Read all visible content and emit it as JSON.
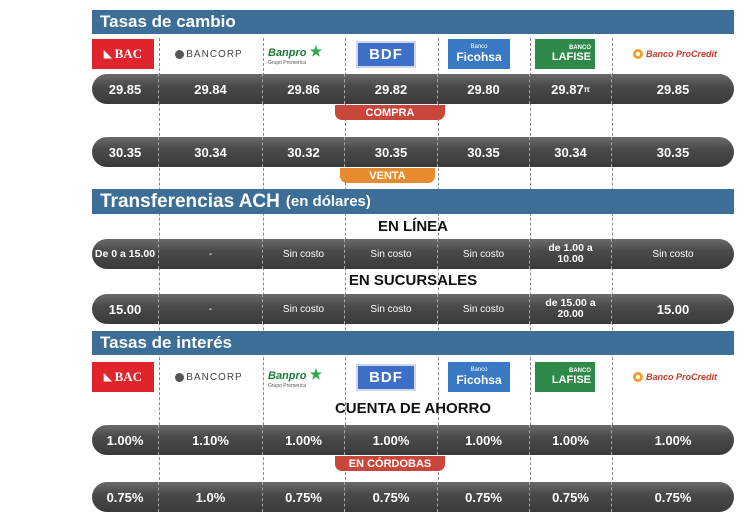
{
  "exchange": {
    "title": "Tasas de cambio",
    "banks": [
      "BAC",
      "BANCORP",
      "Banpro",
      "BDF",
      "Ficohsa",
      "LAFISE",
      "Banco ProCredit"
    ],
    "banpro_sub": "Grupo Promerica",
    "ficohsa_top": "Banco",
    "lafise_top": "BANCO",
    "compra": [
      "29.85",
      "29.84",
      "29.86",
      "29.82",
      "29.80",
      "29.87",
      "29.85"
    ],
    "compra_mark": "π",
    "compra_label": "COMPRA",
    "venta": [
      "30.35",
      "30.34",
      "30.32",
      "30.35",
      "30.35",
      "30.34",
      "30.35"
    ],
    "venta_label": "VENTA"
  },
  "ach": {
    "title": "Transferencias ACH",
    "title_suffix": "(en dólares)",
    "online_title": "EN LÍNEA",
    "online": [
      "De 0 a 15.00",
      "-",
      "Sin costo",
      "Sin costo",
      "Sin costo",
      "de 1.00 a 10.00",
      "Sin costo"
    ],
    "branch_title": "EN SUCURSALES",
    "branch": [
      "15.00",
      "-",
      "Sin costo",
      "Sin costo",
      "Sin costo",
      "de 15.00 a 20.00",
      "15.00"
    ]
  },
  "interest": {
    "title": "Tasas de interés",
    "savings_title": "CUENTA  DE AHORRO",
    "cordobas": [
      "1.00%",
      "1.10%",
      "1.00%",
      "1.00%",
      "1.00%",
      "1.00%",
      "1.00%"
    ],
    "cordobas_label": "EN CÓRDOBAS",
    "dollars": [
      "0.75%",
      "1.0%",
      "0.75%",
      "0.75%",
      "0.75%",
      "0.75%",
      "0.75%"
    ]
  },
  "colors": {
    "section_bar": "#3c6e97",
    "compra_pill": "#c9473a",
    "venta_pill": "#e88a2e",
    "cordobas_pill": "#c9473a",
    "bac_red": "#e0242c",
    "bdf_blue": "#3d6fc8",
    "lafise_green": "#2f8a4a",
    "ficohsa_blue": "#3a79c4"
  }
}
